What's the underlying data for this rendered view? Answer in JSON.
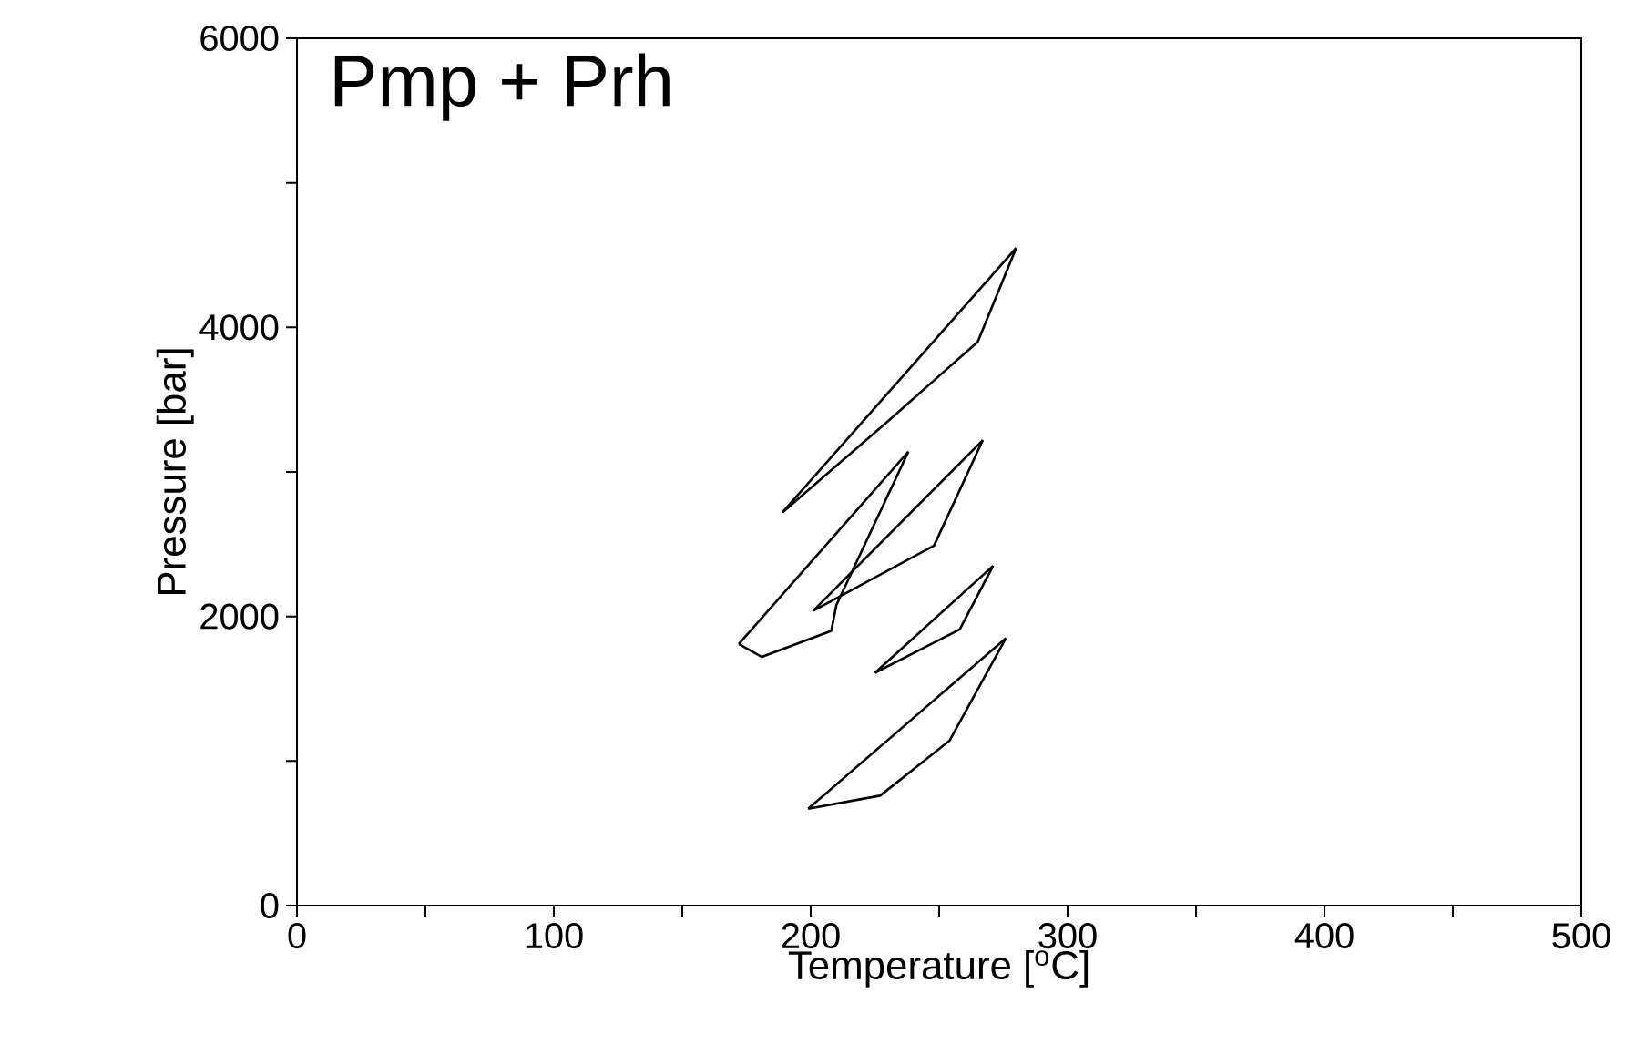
{
  "chart_data": {
    "type": "line",
    "xlabel": "Temperature [$^{o}$C]",
    "ylabel": "Pressure [bar]",
    "annotations": [
      "Pmp + Prh"
    ],
    "marker": "none",
    "line_style": "solid",
    "xlim": [
      0,
      500
    ],
    "ylim": [
      0,
      6000
    ],
    "xticks": [
      0,
      {
        "value": 50,
        "label": null
      },
      100,
      {
        "value": 150,
        "label": null
      },
      200,
      {
        "value": 250,
        "label": null
      },
      300,
      {
        "value": 350,
        "label": null
      },
      400,
      {
        "value": 450,
        "label": null
      },
      500
    ],
    "yticks": [
      0,
      {
        "value": 1000,
        "label": null
      },
      2000,
      {
        "value": 3000,
        "label": null
      },
      4000,
      {
        "value": 5000,
        "label": null
      },
      6000
    ],
    "series": [
      {
        "color": "#000000",
        "x": [
          189,
          280
        ],
        "values": [
          2720,
          4550
        ]
      },
      {
        "color": "#000000",
        "x": [
          189,
          230,
          265,
          280
        ],
        "values": [
          2720,
          3350,
          3900,
          4550
        ]
      },
      {
        "color": "#000000",
        "x": [
          172,
          238
        ],
        "values": [
          1810,
          3140
        ]
      },
      {
        "color": "#000000",
        "x": [
          172,
          181,
          208,
          210,
          238
        ],
        "values": [
          1810,
          1720,
          1900,
          2080,
          3140
        ]
      },
      {
        "color": "#000000",
        "x": [
          201,
          267
        ],
        "values": [
          2040,
          3220
        ]
      },
      {
        "color": "#000000",
        "x": [
          201,
          248,
          267
        ],
        "values": [
          2040,
          2490,
          3220
        ]
      },
      {
        "color": "#000000",
        "x": [
          225,
          271
        ],
        "values": [
          1610,
          2350
        ]
      },
      {
        "color": "#000000",
        "x": [
          225,
          258,
          271
        ],
        "values": [
          1610,
          1910,
          2350
        ]
      },
      {
        "color": "#000000",
        "x": [
          199,
          276
        ],
        "values": [
          670,
          1850
        ]
      },
      {
        "color": "#000000",
        "x": [
          199,
          227,
          254,
          276
        ],
        "values": [
          670,
          760,
          1140,
          1850
        ]
      }
    ]
  }
}
